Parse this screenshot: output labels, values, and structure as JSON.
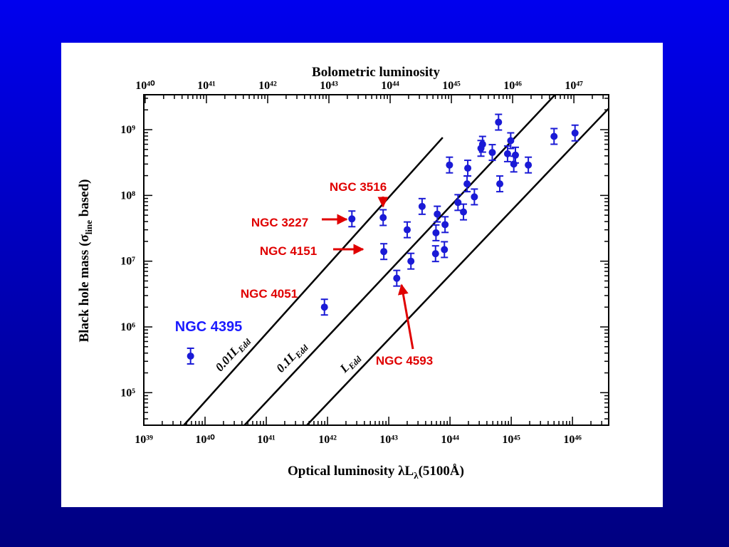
{
  "chart_data": {
    "type": "scatter",
    "color": "#1a1ad6",
    "xlabel": {
      "text": "Optical luminosity λL",
      "sub": "λ",
      "after": "(5100Å)"
    },
    "x2label": "Bolometric luminosity",
    "ylabel": {
      "text": "Black hole mass (σ",
      "sub": "line",
      "after": " based)"
    },
    "xscale": "log",
    "yscale": "log",
    "xlim": [
      1e+39,
      3.9e+46
    ],
    "x2lim": [
      9.5e+39,
      3.7e+47
    ],
    "ylim": [
      32000.0,
      3400000000.0
    ],
    "xticks": [
      {
        "value": 1e+39,
        "label": "10³⁹"
      },
      {
        "value": 1e+40,
        "label": "10⁴⁰"
      },
      {
        "value": 1e+41,
        "label": "10⁴¹"
      },
      {
        "value": 1e+42,
        "label": "10⁴²"
      },
      {
        "value": 1e+43,
        "label": "10⁴³"
      },
      {
        "value": 1e+44,
        "label": "10⁴⁴"
      },
      {
        "value": 1e+45,
        "label": "10⁴⁵"
      },
      {
        "value": 1e+46,
        "label": "10⁴⁶"
      }
    ],
    "x2ticks": [
      {
        "value": 1e+40,
        "label": "10⁴⁰"
      },
      {
        "value": 1e+41,
        "label": "10⁴¹"
      },
      {
        "value": 1e+42,
        "label": "10⁴²"
      },
      {
        "value": 1e+43,
        "label": "10⁴³"
      },
      {
        "value": 1e+44,
        "label": "10⁴⁴"
      },
      {
        "value": 1e+45,
        "label": "10⁴⁵"
      },
      {
        "value": 1e+46,
        "label": "10⁴⁶"
      },
      {
        "value": 1e+47,
        "label": "10⁴⁷"
      }
    ],
    "yticks": [
      {
        "value": 100000.0,
        "label": "10⁵"
      },
      {
        "value": 1000000.0,
        "label": "10⁶"
      },
      {
        "value": 10000000.0,
        "label": "10⁷"
      },
      {
        "value": 100000000.0,
        "label": "10⁸"
      },
      {
        "value": 1000000000.0,
        "label": "10⁹"
      }
    ],
    "x": [
      5.8e+39,
      8.9e+41,
      2.5e+42,
      8.1e+42,
      8.3e+42,
      1.35e+43,
      2e+43,
      2.3e+43,
      3.5e+43,
      5.8e+43,
      5.9e+43,
      6.2e+43,
      8.1e+43,
      8.3e+43,
      9.8e+43,
      1.35e+44,
      1.66e+44,
      1.9e+44,
      1.95e+44,
      2.5e+44,
      3.2e+44,
      3.4e+44,
      4.9e+44,
      6.2e+44,
      6.5e+44,
      8.7e+44,
      9.8e+44,
      1.1e+45,
      1.17e+45,
      1.9e+45,
      5e+45,
      1.1e+46
    ],
    "values": [
      360000.0,
      2000000.0,
      44000000.0,
      46000000.0,
      14000000.0,
      5500000.0,
      30000000.0,
      10000000.0,
      68000000.0,
      13000000.0,
      27000000.0,
      52000000.0,
      15000000.0,
      36000000.0,
      290000000.0,
      78000000.0,
      56000000.0,
      150000000.0,
      260000000.0,
      95000000.0,
      520000000.0,
      600000000.0,
      450000000.0,
      1300000000.0,
      150000000.0,
      430000000.0,
      680000000.0,
      300000000.0,
      410000000.0,
      290000000.0,
      790000000.0,
      890000000.0
    ],
    "lines": [
      {
        "label": "0.01L",
        "sub": "Edd",
        "x": [
          4.5e+39,
          7.6e+43
        ],
        "y": [
          32000.0,
          760000000.0
        ]
      },
      {
        "label": "0.1L",
        "sub": "Edd",
        "x": [
          4.4e+40,
          5.2e+45
        ],
        "y": [
          32000.0,
          3400000000.0
        ]
      },
      {
        "label": "L",
        "sub": "Edd",
        "x": [
          4.6e+41,
          3.9e+46
        ],
        "y": [
          32000.0,
          2100000000.0
        ]
      }
    ],
    "annotations": [
      {
        "text": "NGC 3516",
        "color": "#e00000"
      },
      {
        "text": "NGC 3227",
        "color": "#e00000"
      },
      {
        "text": "NGC 4151",
        "color": "#e00000"
      },
      {
        "text": "NGC 4051",
        "color": "#e00000"
      },
      {
        "text": "NGC 4593",
        "color": "#e00000"
      },
      {
        "text": "NGC 4395",
        "color": "#1a1aff"
      }
    ]
  }
}
